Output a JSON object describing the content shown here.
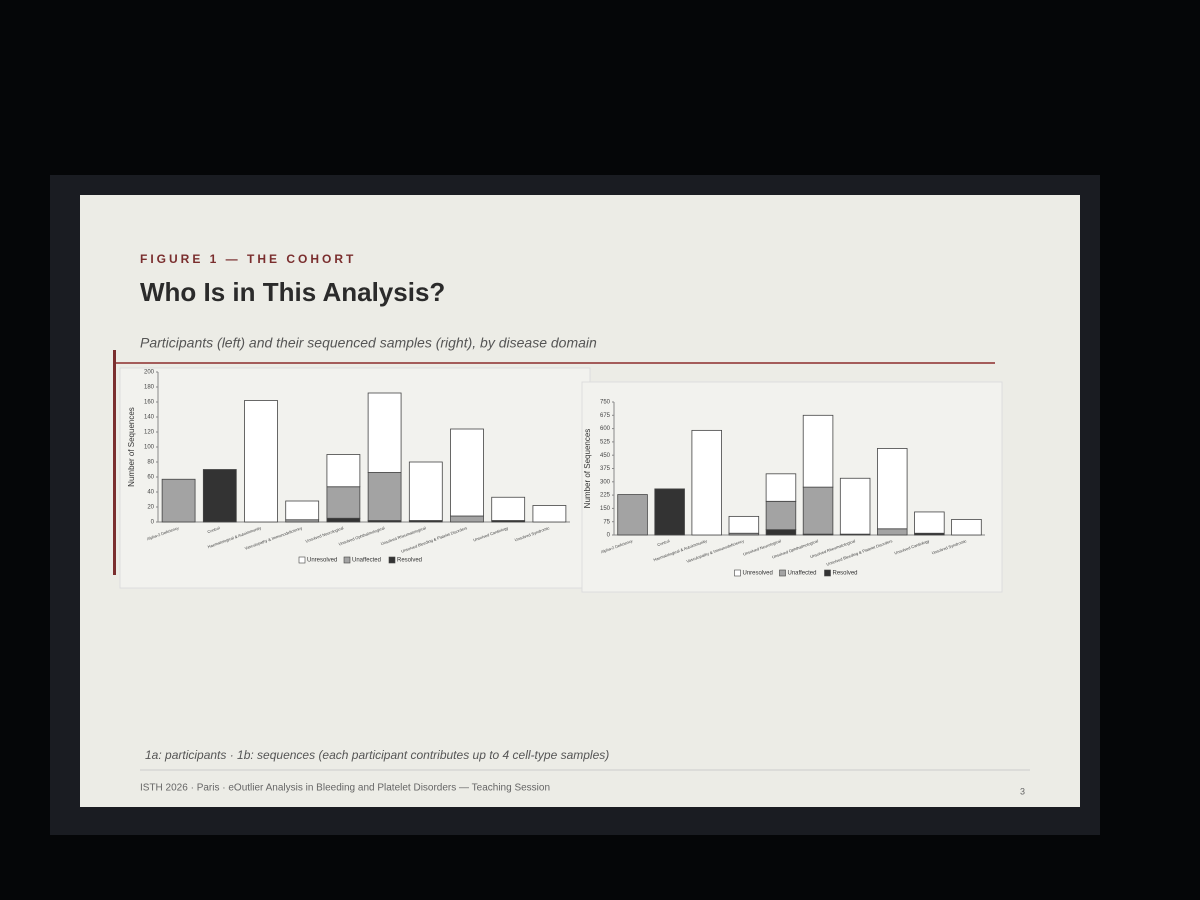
{
  "slide": {
    "kicker": "FIGURE 1 — THE COHORT",
    "title": "Who Is in This Analysis?",
    "subtitle": "Participants (left) and their sequenced samples (right), by disease domain",
    "caption": "1a: participants · 1b: sequences (each participant contributes up to 4 cell-type samples)",
    "footer": "ISTH 2026 · Paris · eOutlier Analysis in Bleeding and Platelet Disorders — Teaching Session",
    "page_number": "3"
  },
  "chart_data": [
    {
      "type": "bar",
      "stacked": true,
      "y_label": "Number of Sequences",
      "categories": [
        "Alpha-2 Deficiency",
        "Control",
        "Haematological & Autoimmunity",
        "Vasculopathy & Immunodeficiency",
        "Unsolved Neurological",
        "Unsolved Ophthalmological",
        "Unsolved Rheumatological",
        "Unsolved Bleeding & Platelet Disorders",
        "Unsolved Cardiology",
        "Unsolved Syndromic"
      ],
      "series": [
        {
          "name": "Unresolved",
          "color": "#ffffff",
          "values": [
            0,
            0,
            162,
            25,
            43,
            106,
            78,
            116,
            31,
            22
          ]
        },
        {
          "name": "Unaffected",
          "color": "#a3a3a3",
          "values": [
            57,
            0,
            0,
            3,
            42,
            64,
            0,
            8,
            0,
            0
          ]
        },
        {
          "name": "Resolved",
          "color": "#333333",
          "values": [
            0,
            70,
            0,
            0,
            5,
            2,
            2,
            0,
            2,
            0
          ]
        }
      ],
      "ylim": [
        0,
        200
      ],
      "yticks": [
        0,
        20,
        40,
        60,
        80,
        100,
        120,
        140,
        160,
        180,
        200
      ]
    },
    {
      "type": "bar",
      "stacked": true,
      "y_label": "Number of Sequences",
      "categories": [
        "Alpha-2 Deficiency",
        "Control",
        "Haematological & Autoimmunity",
        "Vasculopathy & Immunodeficiency",
        "Unsolved Neurological",
        "Unsolved Ophthalmological",
        "Unsolved Rheumatological",
        "Unsolved Bleeding & Platelet Disorders",
        "Unsolved Cardiology",
        "Unsolved Syndromic"
      ],
      "series": [
        {
          "name": "Unresolved",
          "color": "#ffffff",
          "values": [
            0,
            0,
            590,
            95,
            155,
            405,
            315,
            453,
            120,
            88
          ]
        },
        {
          "name": "Unaffected",
          "color": "#a3a3a3",
          "values": [
            228,
            0,
            0,
            10,
            160,
            265,
            0,
            35,
            0,
            0
          ]
        },
        {
          "name": "Resolved",
          "color": "#333333",
          "values": [
            0,
            260,
            0,
            0,
            30,
            5,
            5,
            0,
            10,
            0
          ]
        }
      ],
      "ylim": [
        0,
        750
      ],
      "yticks": [
        0,
        75,
        150,
        225,
        300,
        375,
        450,
        525,
        600,
        675,
        750
      ]
    }
  ]
}
